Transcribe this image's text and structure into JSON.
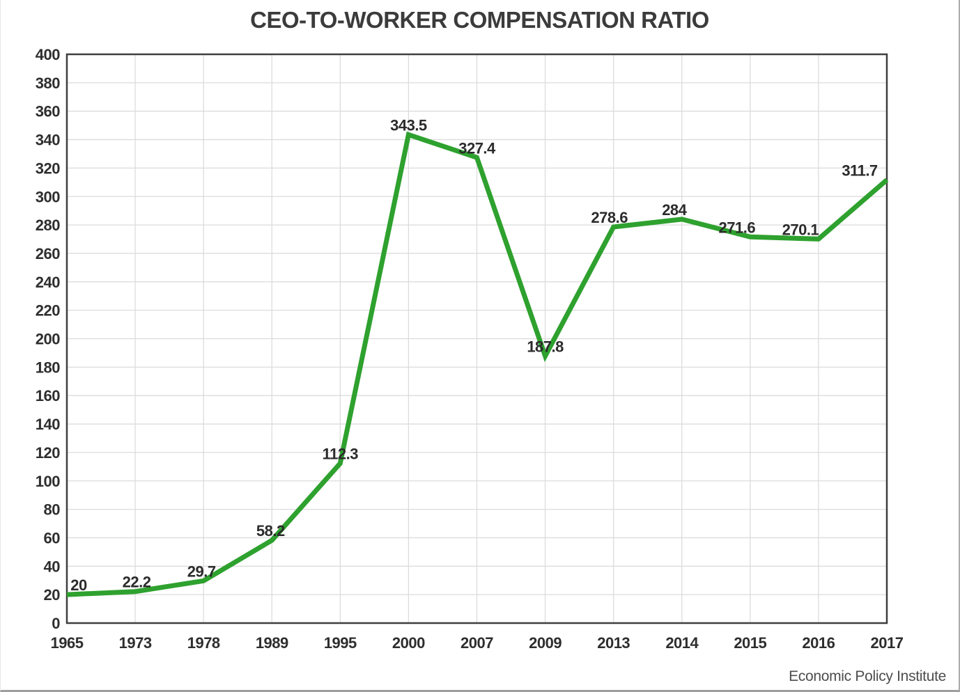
{
  "figure": {
    "title": "CEO-TO-WORKER COMPENSATION RATIO",
    "source_note": "Economic Policy Institute"
  },
  "chart_data": {
    "type": "line",
    "title": "CEO-TO-WORKER COMPENSATION RATIO",
    "xlabel": "",
    "ylabel": "",
    "categories": [
      "1965",
      "1973",
      "1978",
      "1989",
      "1995",
      "2000",
      "2007",
      "2009",
      "2013",
      "2014",
      "2015",
      "2016",
      "2017"
    ],
    "series": [
      {
        "name": "CEO-to-worker compensation ratio",
        "values": [
          20,
          22.2,
          29.7,
          58.2,
          112.3,
          343.5,
          327.4,
          187.8,
          278.6,
          284,
          271.6,
          270.1,
          311.7
        ]
      }
    ],
    "data_labels": [
      "20",
      "22.2",
      "29.7",
      "58.2",
      "112.3",
      "343.5",
      "327.4",
      "187.8",
      "278.6",
      "284",
      "271.6",
      "270.1",
      "311.7"
    ],
    "ylim": [
      0,
      400
    ],
    "ytick_step": 20,
    "ytick_labels": [
      "0",
      "20",
      "40",
      "60",
      "80",
      "100",
      "120",
      "140",
      "160",
      "180",
      "200",
      "220",
      "240",
      "260",
      "280",
      "300",
      "320",
      "340",
      "360",
      "380",
      "400"
    ],
    "grid": true,
    "legend_position": "none",
    "source_note": "Economic Policy Institute",
    "colors": {
      "line": "#2EA12E",
      "grid": "#dcdcdc",
      "plot_border": "#3f3f3f",
      "tick_label": "#2e2e2e",
      "value_label": "#2b2b2b",
      "title": "#3b3b3b",
      "source": "#4d4d4d",
      "background": "#ffffff"
    }
  }
}
